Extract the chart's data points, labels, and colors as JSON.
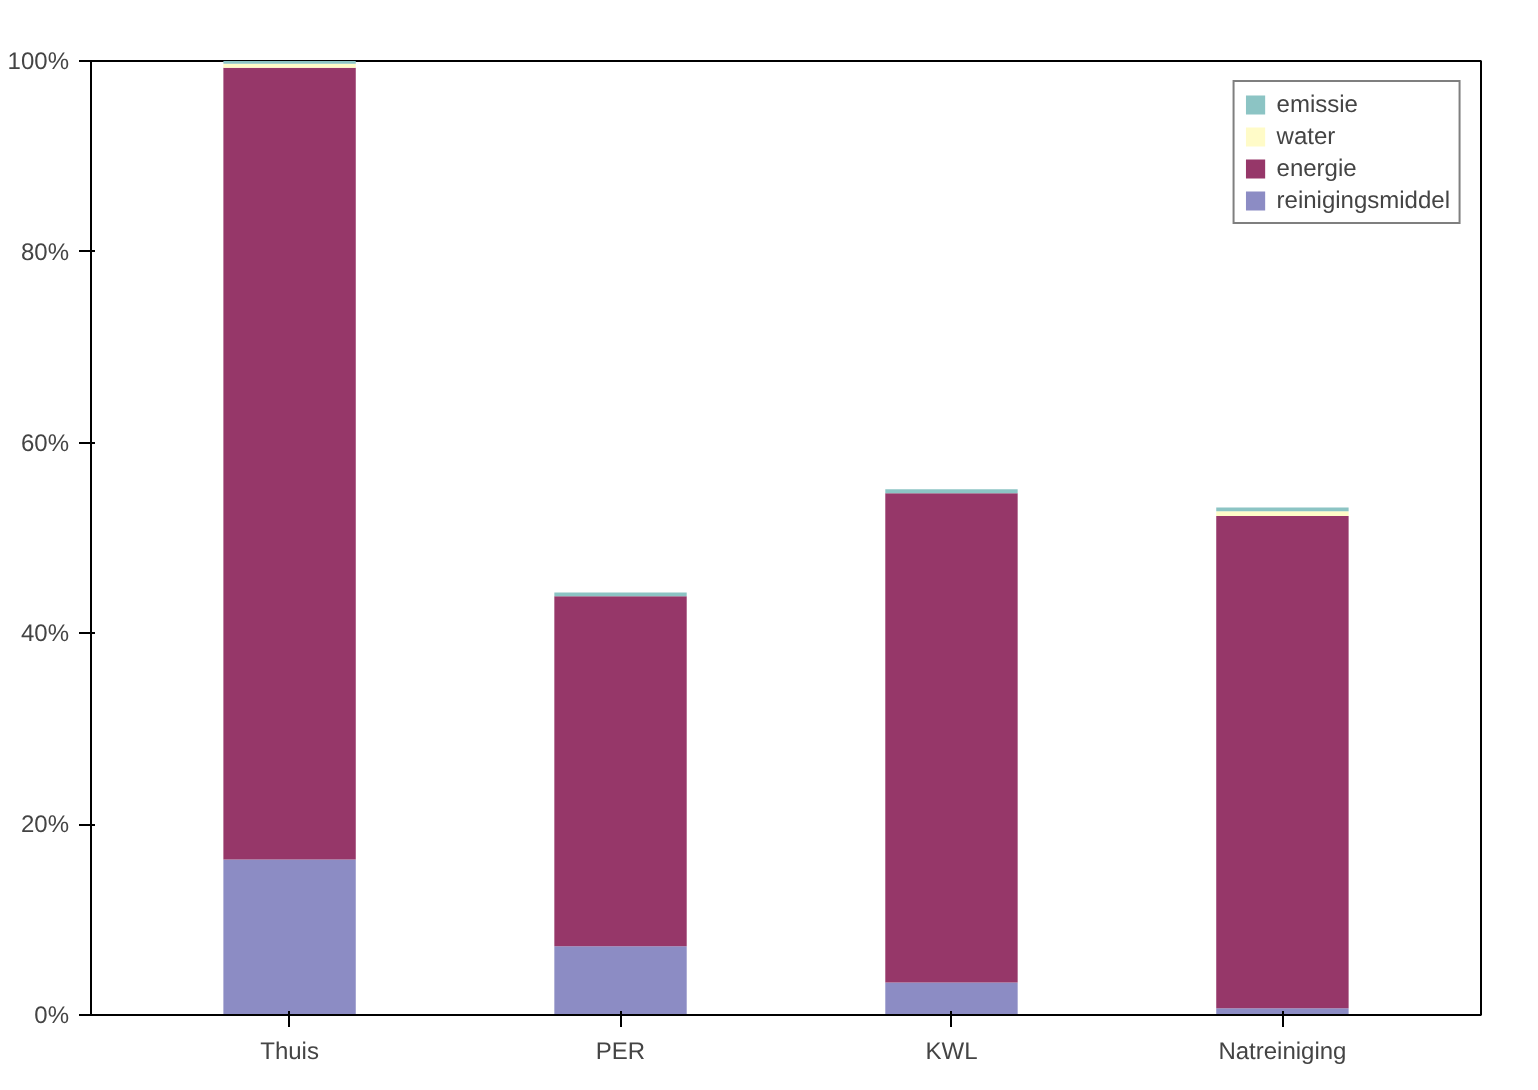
{
  "chart_data": {
    "type": "bar",
    "stacked": true,
    "categories": [
      "Thuis",
      "PER",
      "KWL",
      "Natreiniging"
    ],
    "series": [
      {
        "name": "reinigingsmiddel",
        "color": "#8c8cc4",
        "values": [
          16.3,
          7.2,
          3.4,
          0.7
        ]
      },
      {
        "name": "energie",
        "color": "#963769",
        "values": [
          83.0,
          36.7,
          51.3,
          51.6
        ]
      },
      {
        "name": "water",
        "color": "#fffbc8",
        "values": [
          0.4,
          null,
          null,
          0.5
        ]
      },
      {
        "name": "emissie",
        "color": "#8cc4c4",
        "values": [
          0.3,
          0.4,
          0.4,
          0.4
        ]
      }
    ],
    "ylim": [
      0,
      100
    ],
    "yticks": [
      {
        "value": 0,
        "label": "0%"
      },
      {
        "value": 20,
        "label": "20%"
      },
      {
        "value": 40,
        "label": "40%"
      },
      {
        "value": 60,
        "label": "60%"
      },
      {
        "value": 80,
        "label": "80%"
      },
      {
        "value": 100,
        "label": "100%"
      }
    ],
    "grid": false,
    "legend": "top right"
  }
}
